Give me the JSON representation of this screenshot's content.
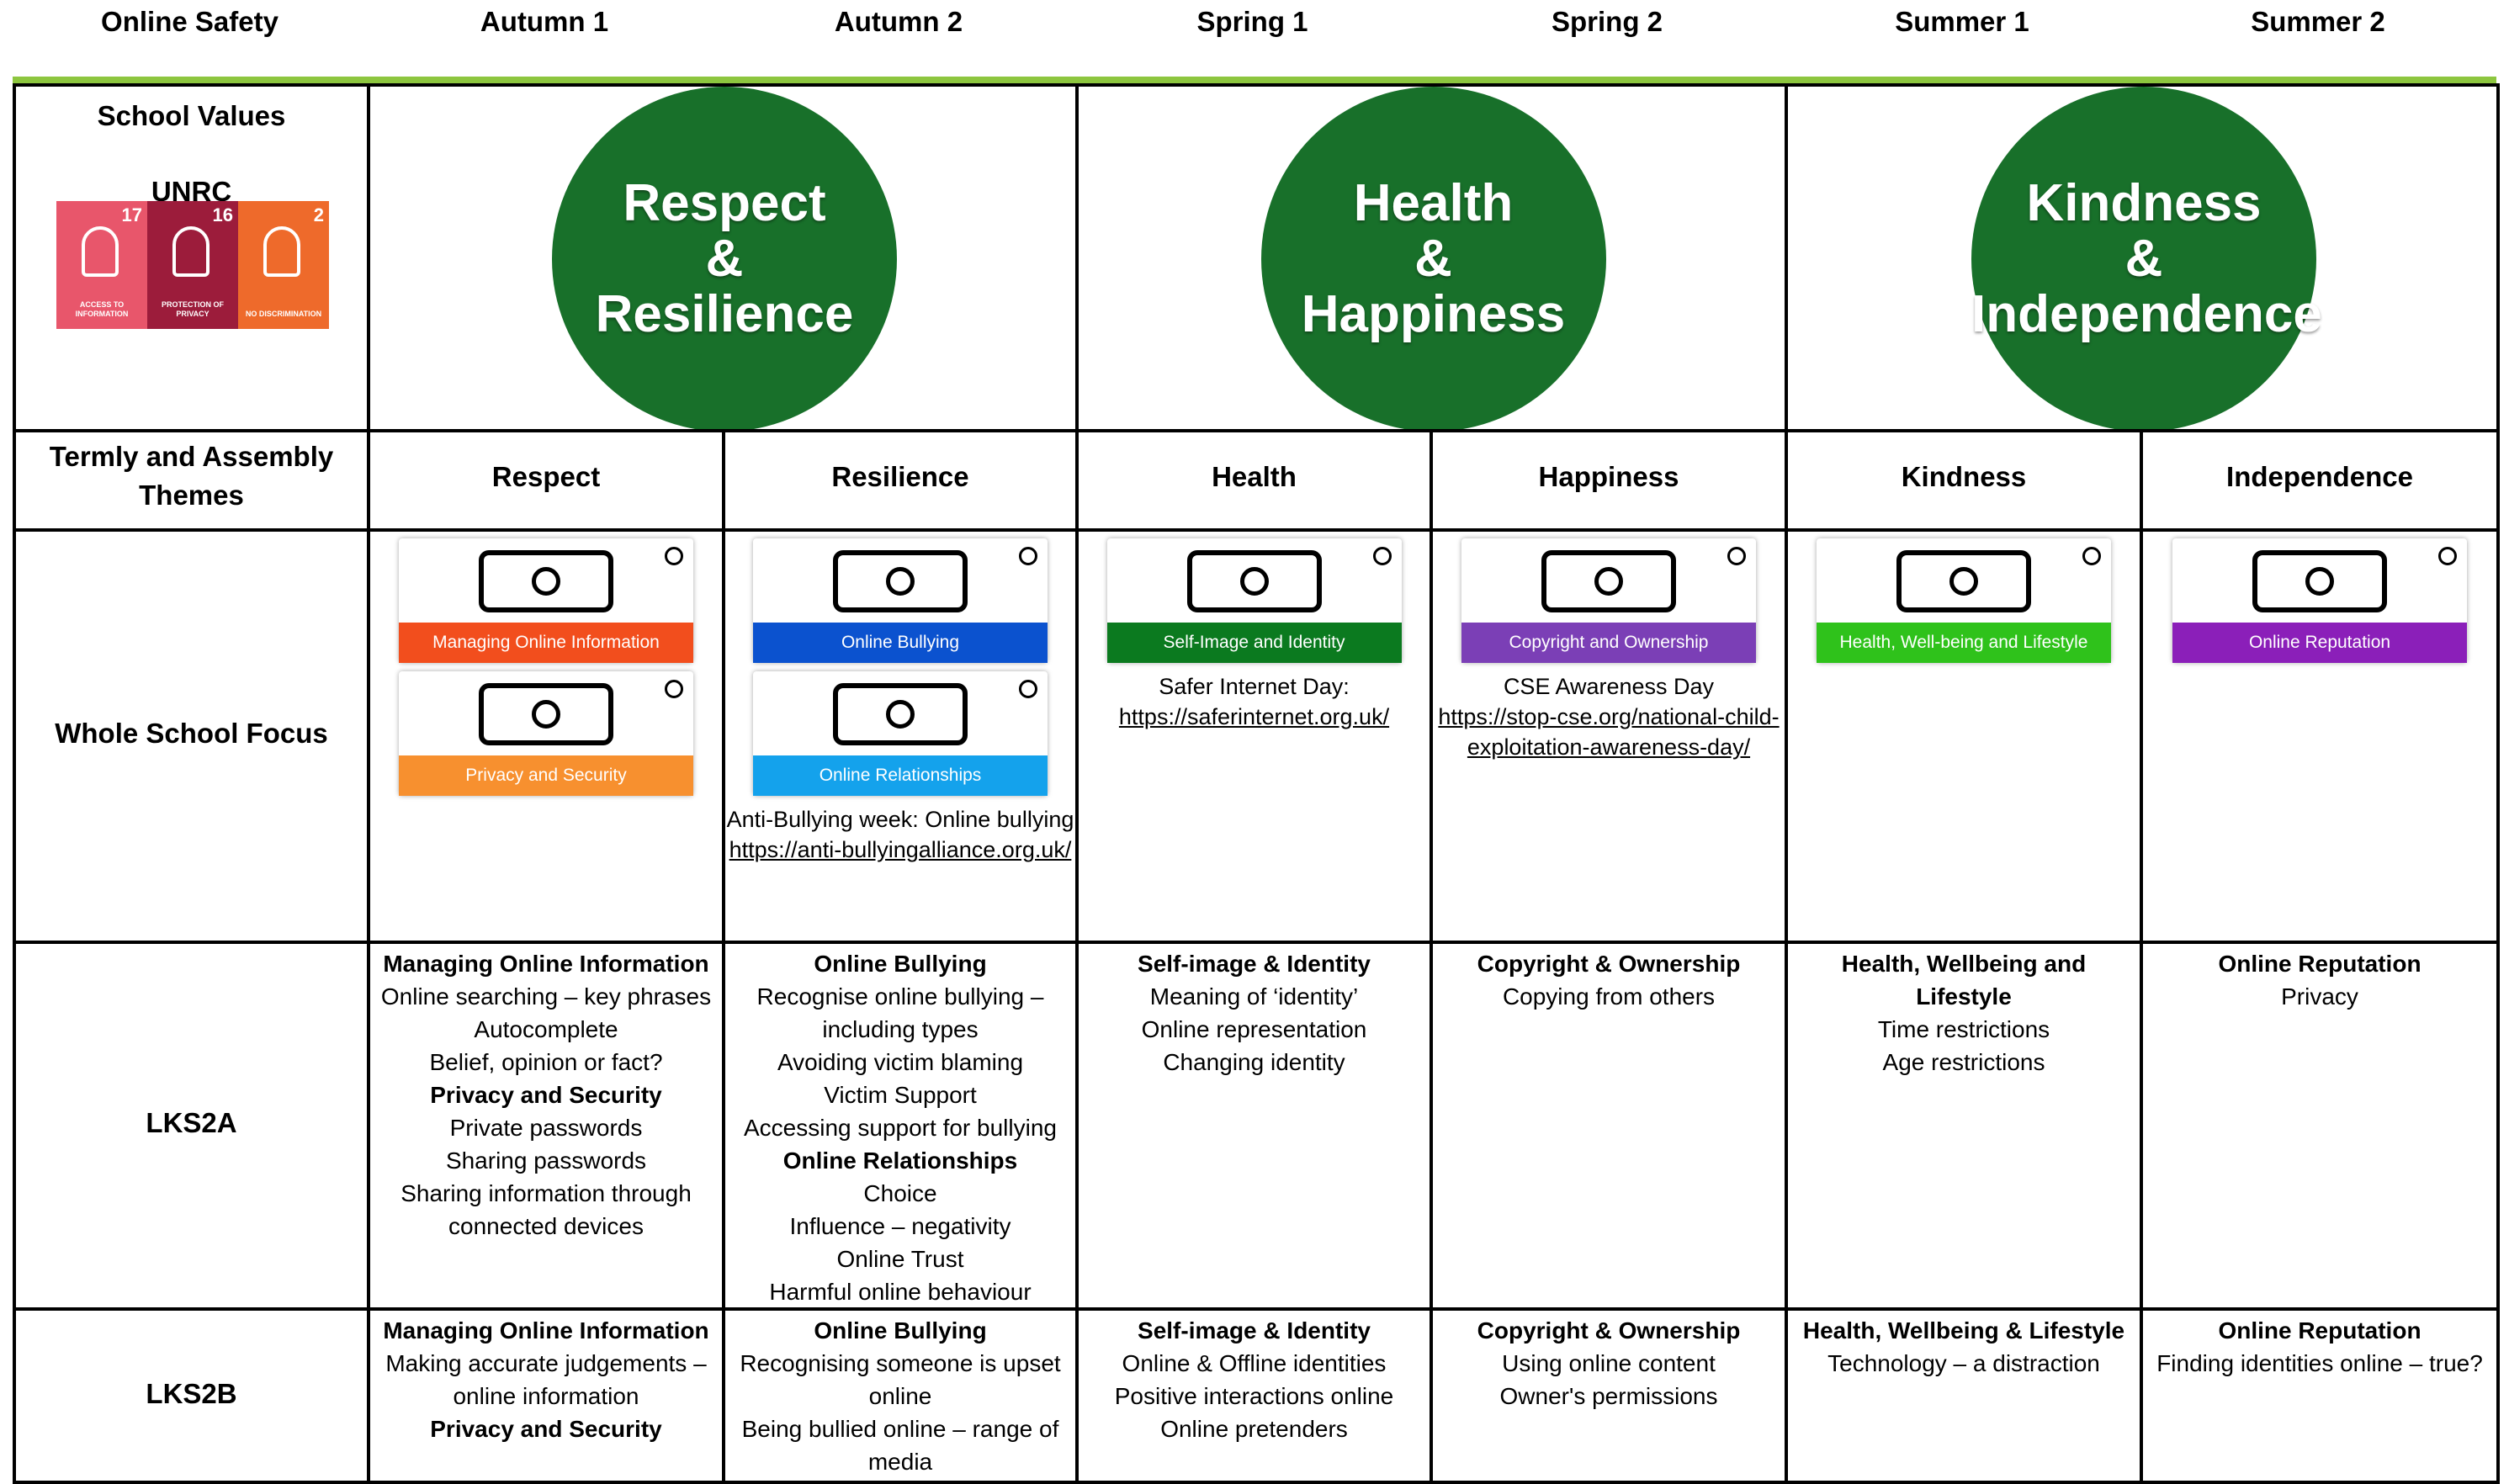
{
  "header": {
    "columns": [
      "Online Safety",
      "Autumn 1",
      "Autumn 2",
      "Spring 1",
      "Spring 2",
      "Summer 1",
      "Summer 2"
    ]
  },
  "school_values": {
    "label": "School Values",
    "unrc": "UNRC",
    "badges": [
      {
        "number": 17,
        "text": "ACCESS TO INFORMATION",
        "color": "#e8566b"
      },
      {
        "number": 16,
        "text": "PROTECTION OF PRIVACY",
        "color": "#9c1c3b"
      },
      {
        "number": 2,
        "text": "NO DISCRIMINATION",
        "color": "#ee6a2b"
      }
    ],
    "values": [
      {
        "lines": [
          "Respect",
          "&",
          "Resilience"
        ]
      },
      {
        "lines": [
          "Health",
          "&",
          "Happiness"
        ]
      },
      {
        "lines": [
          "Kindness",
          "&",
          "Independence"
        ]
      }
    ]
  },
  "themes": {
    "label": "Termly and Assembly Themes",
    "items": [
      "Respect",
      "Resilience",
      "Health",
      "Happiness",
      "Kindness",
      "Independence"
    ]
  },
  "focus": {
    "label": "Whole School Focus",
    "cells": [
      {
        "cards": [
          {
            "label": "Managing Online Information",
            "color": "#f24e1d"
          },
          {
            "label": "Privacy and Security",
            "color": "#f7902f"
          }
        ]
      },
      {
        "cards": [
          {
            "label": "Online Bullying",
            "color": "#0b52cf"
          },
          {
            "label": "Online Relationships",
            "color": "#14a2ec"
          }
        ],
        "note": {
          "text": "Anti-Bullying week: Online bullying",
          "link": "https://anti-bullyingalliance.org.uk/"
        }
      },
      {
        "cards": [
          {
            "label": "Self-Image and Identity",
            "color": "#0b7a1f"
          }
        ],
        "note": {
          "text": "Safer Internet Day:",
          "link": "https://saferinternet.org.uk/"
        }
      },
      {
        "cards": [
          {
            "label": "Copyright and Ownership",
            "color": "#7b3fb6"
          }
        ],
        "note": {
          "text": "CSE Awareness Day",
          "link": "https://stop-cse.org/national-child-exploitation-awareness-day/"
        }
      },
      {
        "cards": [
          {
            "label": "Health, Well-being and Lifestyle",
            "color": "#2fc21b"
          }
        ]
      },
      {
        "cards": [
          {
            "label": "Online Reputation",
            "color": "#8b1fb9"
          }
        ]
      }
    ]
  },
  "rows": [
    {
      "label": "LKS2A",
      "cells": [
        [
          {
            "heading": "Managing Online Information",
            "items": [
              "Online searching – key phrases",
              "Autocomplete",
              "Belief, opinion or fact?"
            ]
          },
          {
            "heading": "Privacy and Security",
            "items": [
              "Private passwords",
              "Sharing passwords",
              "Sharing information through connected devices"
            ]
          }
        ],
        [
          {
            "heading": "Online Bullying",
            "items": [
              "Recognise online bullying – including types",
              "Avoiding victim blaming",
              "Victim Support",
              "Accessing support for bullying"
            ]
          },
          {
            "heading": "Online Relationships",
            "items": [
              "Choice",
              "Influence – negativity",
              "Online Trust",
              "Harmful online behaviour"
            ]
          }
        ],
        [
          {
            "heading": "Self-image & Identity",
            "items": [
              "Meaning of ‘identity’",
              "Online representation",
              "Changing identity"
            ]
          }
        ],
        [
          {
            "heading": "Copyright & Ownership",
            "items": [
              "Copying from others"
            ]
          }
        ],
        [
          {
            "heading": "Health, Wellbeing and Lifestyle",
            "items": [
              "Time restrictions",
              "Age restrictions"
            ]
          }
        ],
        [
          {
            "heading": "Online Reputation",
            "items": [
              "Privacy"
            ]
          }
        ]
      ]
    },
    {
      "label": "LKS2B",
      "cells": [
        [
          {
            "heading": "Managing Online Information",
            "items": [
              "Making accurate judgements – online information"
            ]
          },
          {
            "heading": "Privacy and Security",
            "items": []
          }
        ],
        [
          {
            "heading": "Online Bullying",
            "items": [
              "Recognising someone is upset online",
              "Being bullied online – range of media"
            ]
          }
        ],
        [
          {
            "heading": "Self-image & Identity",
            "items": [
              "Online & Offline identities",
              "Positive interactions online",
              "Online pretenders"
            ]
          }
        ],
        [
          {
            "heading": "Copyright & Ownership",
            "items": [
              "Using online content",
              "Owner's permissions"
            ]
          }
        ],
        [
          {
            "heading": "Health, Wellbeing & Lifestyle",
            "items": [
              "Technology – a distraction"
            ]
          }
        ],
        [
          {
            "heading": "Online Reputation",
            "items": [
              "Finding identities online – true?"
            ]
          }
        ]
      ]
    }
  ]
}
